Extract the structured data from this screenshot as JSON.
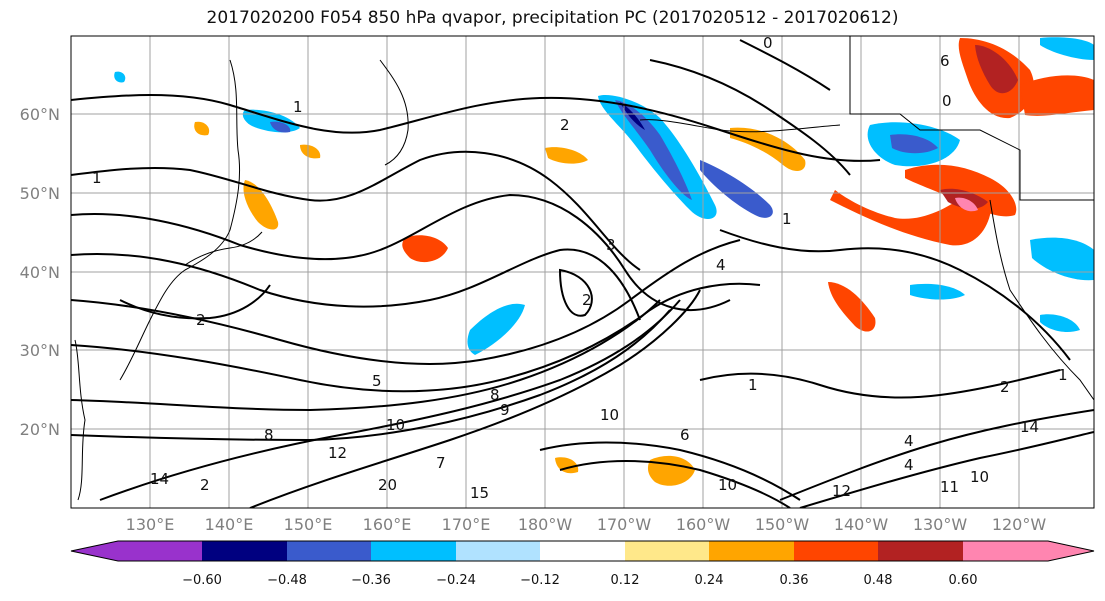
{
  "title": "2017020200 F054 850 hPa qvapor, precipitation PC (2017020512 - 2017020612)",
  "map": {
    "lat_labels": [
      "60°N",
      "50°N",
      "40°N",
      "30°N",
      "20°N"
    ],
    "lon_labels": [
      "130°E",
      "140°E",
      "150°E",
      "160°E",
      "170°E",
      "180°W",
      "170°W",
      "160°W",
      "150°W",
      "140°W",
      "130°W",
      "120°W"
    ],
    "contour_labels": [
      "0",
      "1",
      "2",
      "1",
      "2",
      "3",
      "4",
      "2",
      "6",
      "1",
      "0",
      "6",
      "4",
      "5",
      "8",
      "10",
      "12",
      "14",
      "20",
      "15",
      "10",
      "12",
      "11",
      "10",
      "1",
      "2",
      "8",
      "9",
      "10",
      "7",
      "1",
      "2",
      "4",
      "14"
    ]
  },
  "colorbar": {
    "ticks": [
      "−0.60",
      "−0.48",
      "−0.36",
      "−0.24",
      "−0.12",
      "0.12",
      "0.24",
      "0.36",
      "0.48",
      "0.60"
    ],
    "colors": [
      "#9932cc",
      "#000080",
      "#3a5bcc",
      "#00bfff",
      "#b0e2ff",
      "#ffffff",
      "#ffe88a",
      "#ffa500",
      "#ff4500",
      "#b22222",
      "#ff85b0"
    ]
  }
}
